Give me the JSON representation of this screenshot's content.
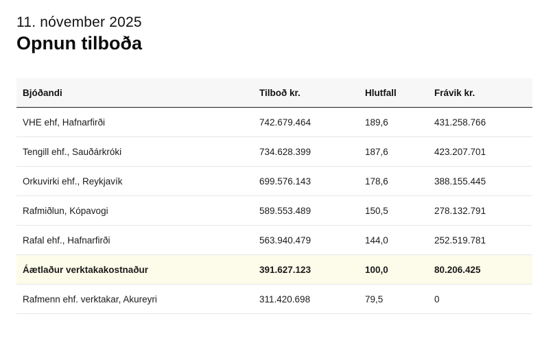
{
  "header": {
    "date": "11. nóvember 2025",
    "title": "Opnun tilboða"
  },
  "table": {
    "columns": [
      "Bjóðandi",
      "Tilboð kr.",
      "Hlutfall",
      "Frávik kr."
    ],
    "rows": [
      {
        "bidder": "VHE ehf, Hafnarfirði",
        "offer": "742.679.464",
        "ratio": "189,6",
        "deviation": "431.258.766"
      },
      {
        "bidder": "Tengill ehf., Sauðárkróki",
        "offer": "734.628.399",
        "ratio": "187,6",
        "deviation": "423.207.701"
      },
      {
        "bidder": "Orkuvirki ehf., Reykjavík",
        "offer": "699.576.143",
        "ratio": "178,6",
        "deviation": "388.155.445"
      },
      {
        "bidder": "Rafmiðlun, Kópavogi",
        "offer": "589.553.489",
        "ratio": "150,5",
        "deviation": "278.132.791"
      },
      {
        "bidder": "Rafal ehf., Hafnarfirði",
        "offer": "563.940.479",
        "ratio": "144,0",
        "deviation": "252.519.781"
      },
      {
        "bidder": "Áætlaður verktakakostnaður",
        "offer": "391.627.123",
        "ratio": "100,0",
        "deviation": "80.206.425"
      },
      {
        "bidder": "Rafmenn ehf. verktakar, Akureyri",
        "offer": "311.420.698",
        "ratio": "79,5",
        "deviation": "0"
      }
    ]
  }
}
